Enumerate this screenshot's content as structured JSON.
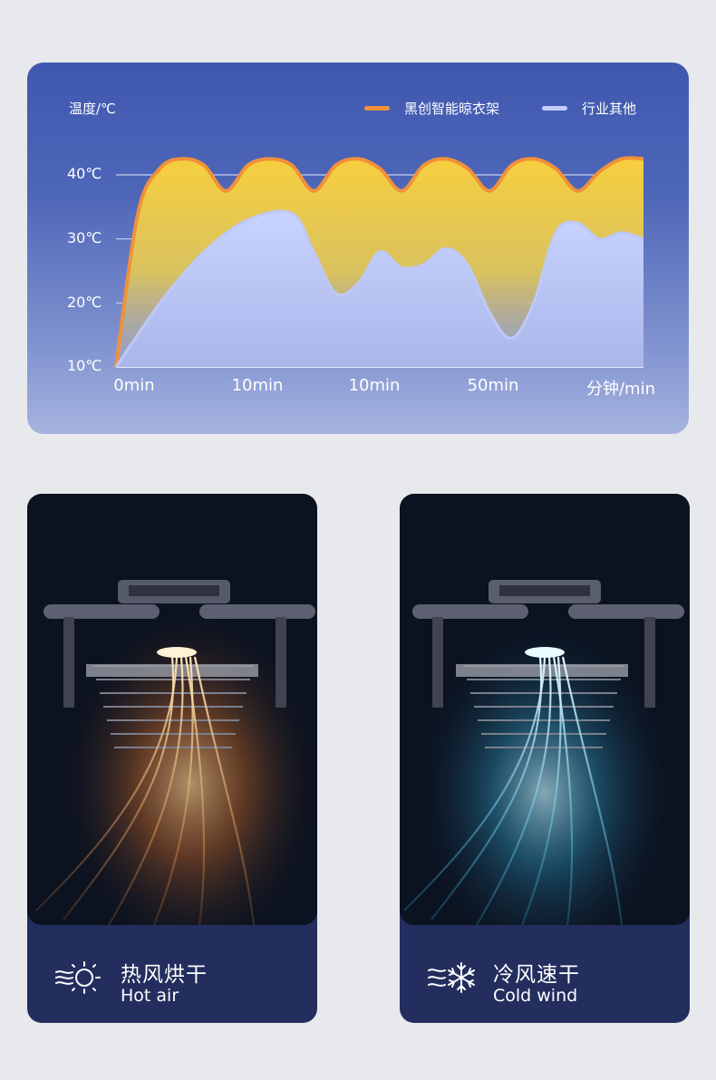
{
  "chart_data": {
    "type": "area",
    "unit_label": "温度/℃",
    "y_ticks": [
      "40℃",
      "30℃",
      "20℃",
      "10℃"
    ],
    "x_ticks": [
      "0min",
      "10min",
      "10min",
      "50min",
      "分钟/min"
    ],
    "ylim": [
      10,
      40
    ],
    "grid": true,
    "legend_placement": "top-right",
    "series": [
      {
        "name": "黑创智能晾衣架",
        "color": "#f0913a",
        "x": [
          0,
          1,
          2,
          3,
          4,
          5,
          6,
          7,
          8,
          9,
          10,
          11,
          12,
          13,
          14,
          15,
          16,
          17,
          18,
          19,
          20,
          21,
          22,
          23,
          24
        ],
        "values": [
          10,
          34,
          41,
          42.5,
          41.5,
          37.5,
          41.5,
          42.5,
          41.5,
          37.5,
          41.5,
          42.5,
          41,
          37.5,
          41.5,
          42.5,
          41,
          37.5,
          41.5,
          42.5,
          41,
          37.5,
          40.5,
          42.5,
          42.5
        ]
      },
      {
        "name": "行业其他",
        "color": "#bfc9f6",
        "x": [
          0,
          2,
          4,
          6,
          8,
          9,
          10,
          11,
          12,
          13,
          14,
          15,
          16,
          17,
          18,
          19,
          20,
          21,
          22,
          23,
          24
        ],
        "values": [
          10,
          20,
          28,
          33,
          34,
          28,
          21.5,
          23,
          28,
          25.5,
          26,
          28.5,
          26,
          18.5,
          14.5,
          20,
          31,
          32.5,
          30,
          31,
          30
        ]
      }
    ]
  },
  "features": [
    {
      "title_zh": "热风烘干",
      "title_en": "Hot air",
      "icon": "sun-heat-icon"
    },
    {
      "title_zh": "冷风速干",
      "title_en": "Cold wind",
      "icon": "snowflake-wind-icon"
    }
  ]
}
